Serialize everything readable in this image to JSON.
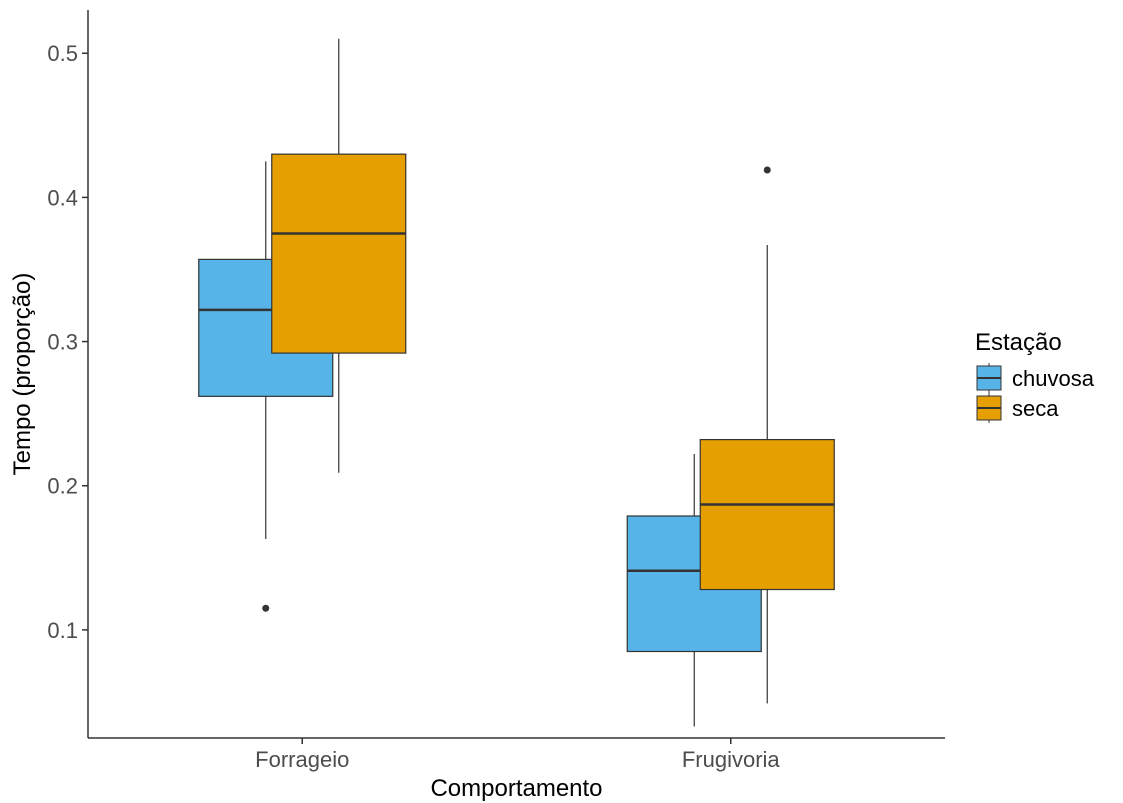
{
  "chart_data": {
    "type": "boxplot",
    "xlabel": "Comportamento",
    "ylabel": "Tempo (proporção)",
    "categories": [
      "Forrageio",
      "Frugivoria"
    ],
    "ylim": [
      0.025,
      0.53
    ],
    "yticks": [
      0.1,
      0.2,
      0.3,
      0.4,
      0.5
    ],
    "ytick_labels": [
      "0.1",
      "0.2",
      "0.3",
      "0.4",
      "0.5"
    ],
    "grid": false,
    "legend": {
      "title": "Estação",
      "position": "right"
    },
    "series": [
      {
        "name": "chuvosa",
        "color": "#56B4E9",
        "boxes": [
          {
            "category": "Forrageio",
            "whisker_low": 0.163,
            "q1": 0.262,
            "median": 0.322,
            "q3": 0.357,
            "whisker_high": 0.425,
            "outliers": [
              0.115
            ]
          },
          {
            "category": "Frugivoria",
            "whisker_low": 0.033,
            "q1": 0.085,
            "median": 0.141,
            "q3": 0.179,
            "whisker_high": 0.222,
            "outliers": []
          }
        ]
      },
      {
        "name": "seca",
        "color": "#E69F00",
        "boxes": [
          {
            "category": "Forrageio",
            "whisker_low": 0.209,
            "q1": 0.292,
            "median": 0.375,
            "q3": 0.43,
            "whisker_high": 0.51,
            "outliers": []
          },
          {
            "category": "Frugivoria",
            "whisker_low": 0.049,
            "q1": 0.128,
            "median": 0.187,
            "q3": 0.232,
            "whisker_high": 0.367,
            "outliers": [
              0.419
            ]
          }
        ]
      }
    ]
  }
}
